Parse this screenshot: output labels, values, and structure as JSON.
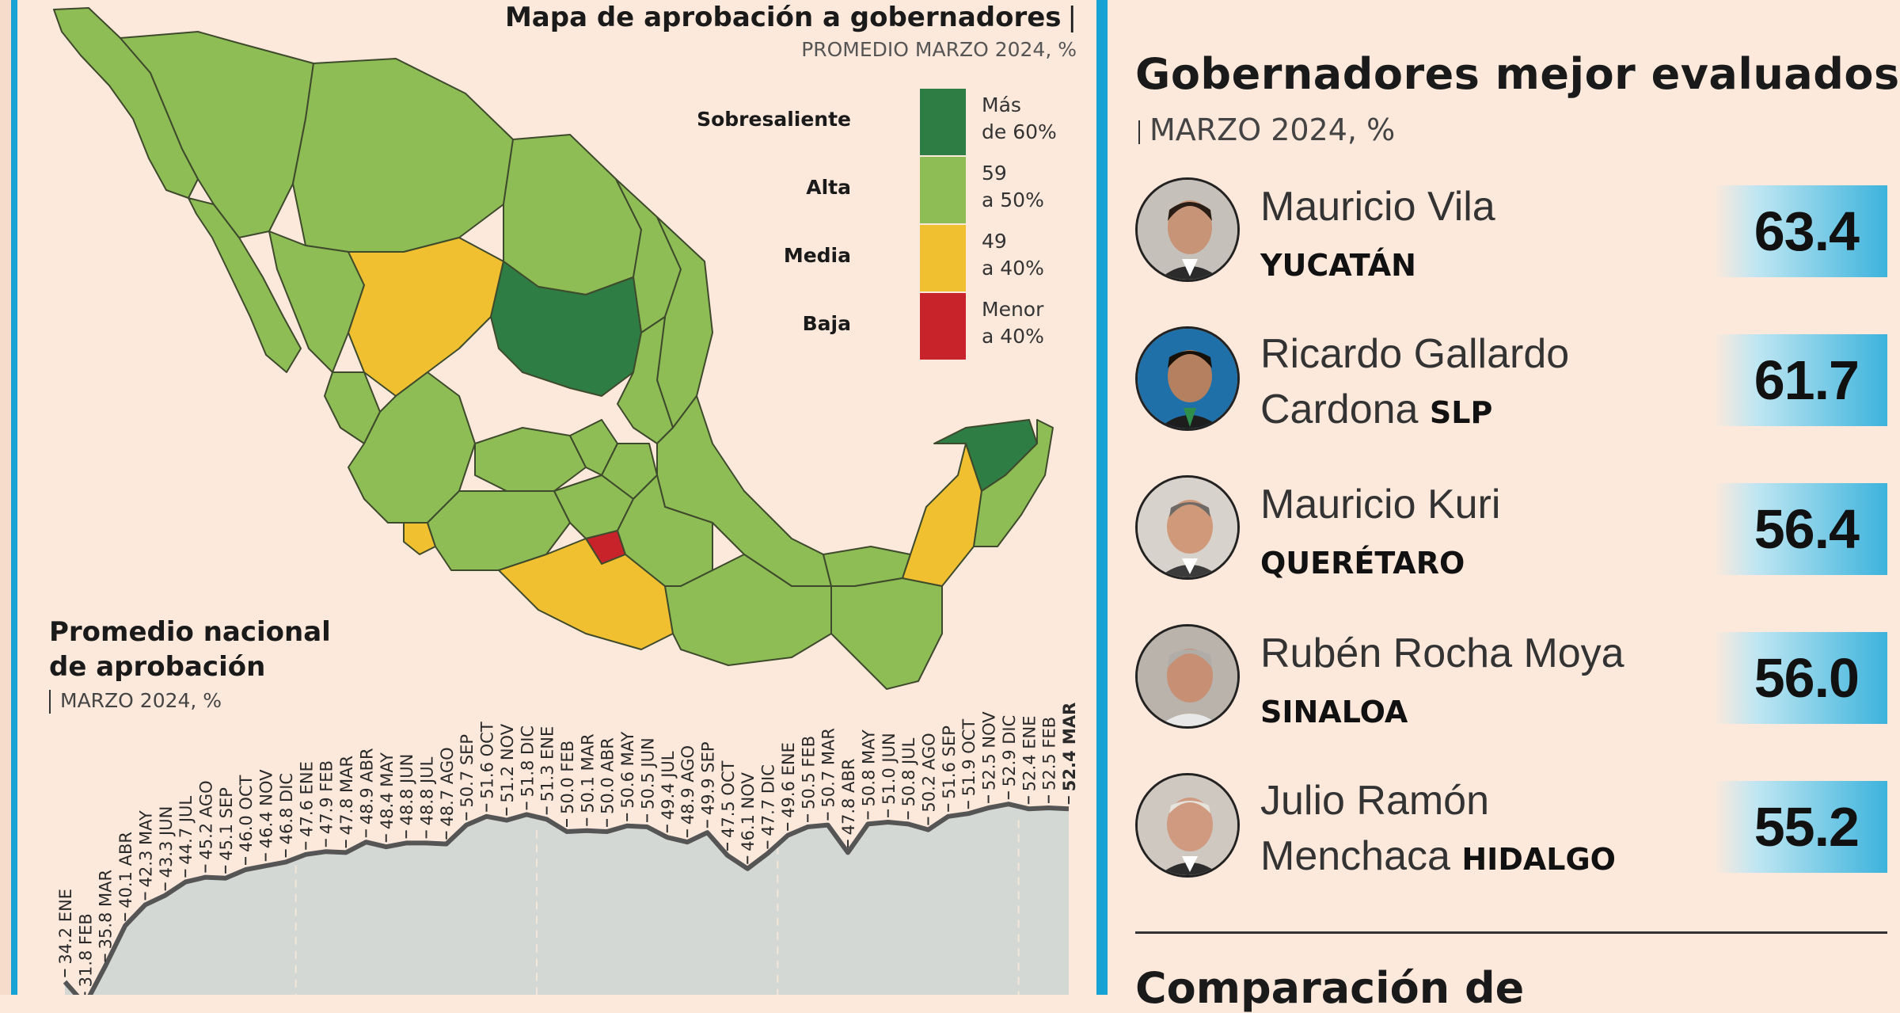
{
  "map": {
    "title": "Mapa de aprobación a gobernadores",
    "title_pipe": "|",
    "subtitle": "PROMEDIO MARZO 2024, %",
    "legend": [
      {
        "label": "Sobresaliente",
        "range_line1": "Más",
        "range_line2": "de 60%",
        "color": "#2e7d45"
      },
      {
        "label": "Alta",
        "range_line1": "59",
        "range_line2": "a 50%",
        "color": "#8fbd55"
      },
      {
        "label": "Media",
        "range_line1": "49",
        "range_line2": "a 40%",
        "color": "#f0c030"
      },
      {
        "label": "Baja",
        "range_line1": "Menor",
        "range_line2": "a 40%",
        "color": "#c8222a"
      }
    ]
  },
  "chart": {
    "title_line1": "Promedio nacional",
    "title_line2": "de aprobación",
    "subtitle": "MARZO 2024, %"
  },
  "chart_data": {
    "type": "area",
    "title": "Promedio nacional de aprobación",
    "subtitle": "MARZO 2024, %",
    "series": [
      {
        "values": [
          34.2,
          31.8,
          35.8,
          40.1,
          42.3,
          43.3,
          44.7,
          45.2,
          45.1,
          46.0,
          46.4,
          46.8,
          47.6,
          47.9,
          47.8,
          48.9,
          48.4,
          48.8,
          48.8,
          48.7,
          50.7,
          51.6,
          51.2,
          51.8,
          51.3,
          50.0,
          50.1,
          50.0,
          50.6,
          50.5,
          49.4,
          48.9,
          49.9,
          47.5,
          46.1,
          47.7,
          49.6,
          50.5,
          50.7,
          47.8,
          50.8,
          51.0,
          50.8,
          50.2,
          51.6,
          51.9,
          52.5,
          52.9,
          52.4,
          52.5,
          52.4
        ]
      }
    ],
    "labels": [
      "34.2 ENE",
      "31.8 FEB",
      "35.8 MAR",
      "40.1 ABR",
      "42.3 MAY",
      "43.3 JUN",
      "44.7 JUL",
      "45.2 AGO",
      "45.1 SEP",
      "46.0 OCT",
      "46.4 NOV",
      "46.8 DIC",
      "47.6 ENE",
      "47.9 FEB",
      "47.8 MAR",
      "48.9 ABR",
      "48.4 MAY",
      "48.8 JUN",
      "48.8 JUL",
      "48.7 AGO",
      "50.7 SEP",
      "51.6 OCT",
      "51.2 NOV",
      "51.8 DIC",
      "51.3 ENE",
      "50.0 FEB",
      "50.1 MAR",
      "50.0 ABR",
      "50.6 MAY",
      "50.5 JUN",
      "49.4 JUL",
      "48.9 AGO",
      "49.9 SEP",
      "47.5 OCT",
      "46.1 NOV",
      "47.7 DIC",
      "49.6 ENE",
      "50.5 FEB",
      "50.7 MAR",
      "47.8 ABR",
      "50.8 MAY",
      "51.0 JUN",
      "50.8 JUL",
      "50.2 AGO",
      "51.6 SEP",
      "51.9 OCT",
      "52.5 NOV",
      "52.9 DIC",
      "52.4 ENE",
      "52.5 FEB",
      "52.4 MAR"
    ],
    "highlight_last": true,
    "fill_color": "#d3d8d4",
    "line_color": "#555555"
  },
  "ranking": {
    "title": "Gobernadores mejor evaluados",
    "subtitle": "MARZO 2024, %",
    "governors": [
      {
        "name_line1": "Mauricio Vila",
        "name_line2": "",
        "state": "YUCATÁN",
        "score": "63.4"
      },
      {
        "name_line1": "Ricardo Gallardo",
        "name_line2": "Cardona",
        "state": "SLP",
        "score": "61.7"
      },
      {
        "name_line1": "Mauricio Kuri",
        "name_line2": "",
        "state": "QUERÉTARO",
        "score": "56.4"
      },
      {
        "name_line1": "Rubén Rocha Moya",
        "name_line2": "",
        "state": "SINALOA",
        "score": "56.0"
      },
      {
        "name_line1": "Julio Ramón",
        "name_line2": "Menchaca",
        "state": "HIDALGO",
        "score": "55.2"
      }
    ],
    "next_section_title": "Comparación de"
  }
}
